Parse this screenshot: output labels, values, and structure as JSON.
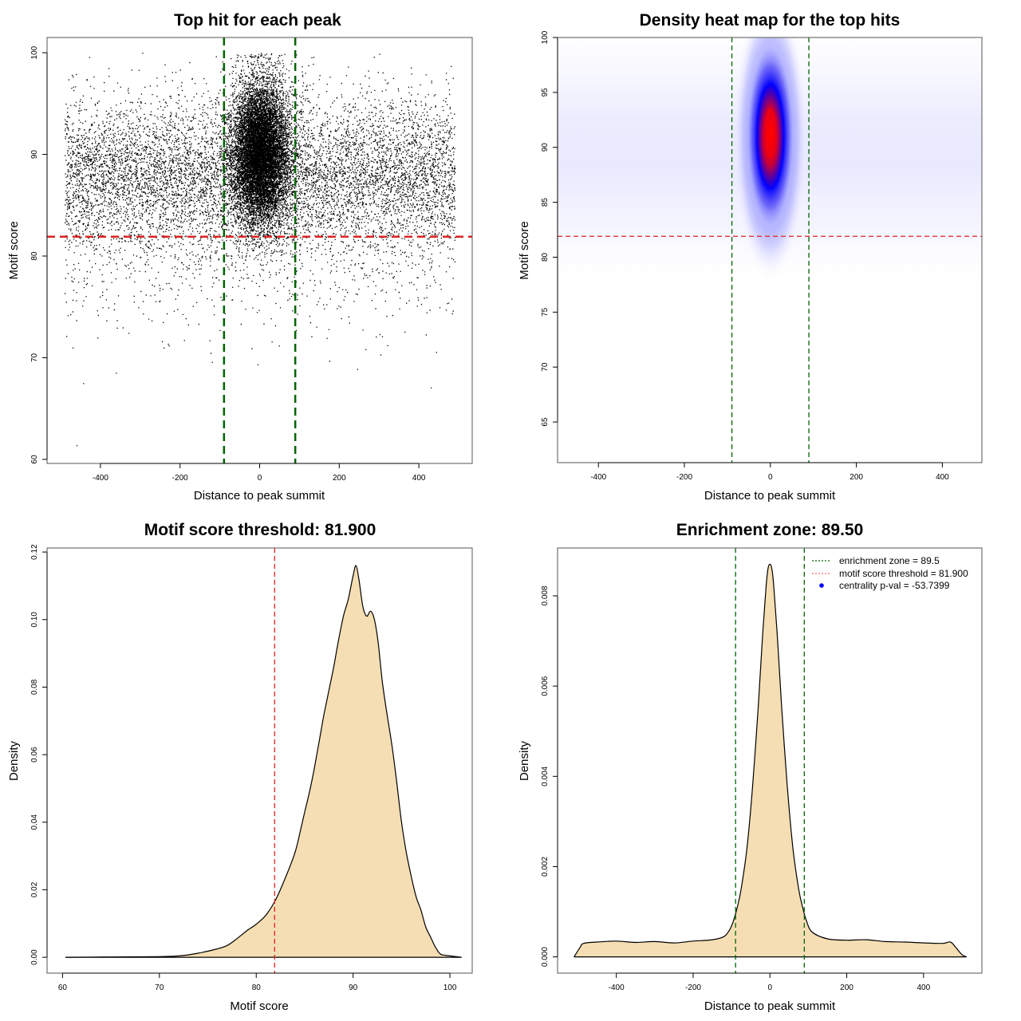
{
  "colors": {
    "enrichment_line": "#006400",
    "threshold_line": "#dd2222",
    "density_fill": "#f5deb3",
    "density_stroke": "#000000",
    "heat_low": "#ffffff",
    "heat_mid": "#0000ff",
    "heat_high": "#ff0000",
    "centrality_point": "#0000ff",
    "points": "#000000"
  },
  "chart_data": [
    {
      "id": "scatter",
      "type": "scatter",
      "title": "Top hit for each peak",
      "xlabel": "Distance to peak summit",
      "ylabel": "Motif score",
      "xlim": [
        -534,
        534
      ],
      "ylim": [
        59.6,
        101.5
      ],
      "xticks": [
        -400,
        -200,
        0,
        200,
        400
      ],
      "xtick_labels": [
        "-400",
        "-200",
        "0",
        "200",
        "400"
      ],
      "yticks": [
        60,
        70,
        80,
        90,
        100
      ],
      "ytick_labels": [
        "60",
        "70",
        "80",
        "90",
        "100"
      ],
      "vlines": [
        -89.5,
        89.5
      ],
      "hline": 81.9,
      "grid": false,
      "points_description": "~20000 points: uniform background over x in [-490,490] with score ~N(88,4); dense central cluster near x=0 (sd ~35), score ~N(90,3.5); scattered outliers down to ~61",
      "point_samples": [
        {
          "x": -460,
          "y": 61.4
        },
        {
          "x": -470,
          "y": 71.0
        },
        {
          "x": -120,
          "y": 69.6
        },
        {
          "x": 245,
          "y": 68.9
        },
        {
          "x": 175,
          "y": 69.7
        },
        {
          "x": 30,
          "y": 71.6
        },
        {
          "x": -295,
          "y": 100
        },
        {
          "x": 135,
          "y": 99.6
        },
        {
          "x": -380,
          "y": 98.5
        },
        {
          "x": 480,
          "y": 98.7
        }
      ]
    },
    {
      "id": "heatmap",
      "type": "heatmap",
      "title": "Density heat map for the top hits",
      "xlabel": "Distance to peak summit",
      "ylabel": "Motif score",
      "xlim": [
        -495,
        492
      ],
      "ylim": [
        61.3,
        100
      ],
      "xticks": [
        -400,
        -200,
        0,
        200,
        400
      ],
      "xtick_labels": [
        "-400",
        "-200",
        "0",
        "200",
        "400"
      ],
      "yticks": [
        65,
        70,
        75,
        80,
        85,
        90,
        95,
        100
      ],
      "ytick_labels": [
        "65",
        "70",
        "75",
        "80",
        "85",
        "90",
        "95",
        "100"
      ],
      "vlines": [
        -89.5,
        89.5
      ],
      "hline": 81.9,
      "hotspot": {
        "x_center": 0,
        "y_center": 91,
        "x_sd": 22,
        "y_sd": 3.3,
        "peak_y_values": [
          92,
          90.5
        ]
      },
      "background": {
        "x_range": [
          -495,
          492
        ],
        "y_center": 89,
        "y_sd": 4.5
      },
      "color_scale": [
        "white",
        "blue",
        "red"
      ]
    },
    {
      "id": "score_density",
      "type": "area",
      "title": "Motif score threshold: 81.900",
      "xlabel": "Motif score",
      "ylabel": "Density",
      "xlim": [
        58.4,
        102.3
      ],
      "ylim": [
        -0.0047,
        0.1212
      ],
      "xticks": [
        60,
        70,
        80,
        90,
        100
      ],
      "xtick_labels": [
        "60",
        "70",
        "80",
        "90",
        "100"
      ],
      "yticks": [
        0,
        0.02,
        0.04,
        0.06,
        0.08,
        0.1,
        0.12
      ],
      "ytick_labels": [
        "0.00",
        "0.02",
        "0.04",
        "0.06",
        "0.08",
        "0.10",
        "0.12"
      ],
      "vline": 81.9,
      "x": [
        60.3,
        65,
        70,
        72,
        74,
        76,
        77,
        78,
        79,
        80,
        81,
        82,
        83,
        84,
        84.6,
        85,
        85.5,
        86,
        86.5,
        87,
        87.5,
        88,
        88.5,
        89,
        89.5,
        90,
        90.3,
        90.6,
        91,
        91.4,
        91.8,
        92.2,
        92.6,
        93,
        93.5,
        94,
        94.5,
        95,
        95.5,
        96,
        96.5,
        97,
        97.5,
        98,
        98.5,
        99,
        99.5,
        100,
        101.2
      ],
      "y": [
        0.0,
        0.0001,
        0.0002,
        0.0004,
        0.0012,
        0.0025,
        0.0035,
        0.0055,
        0.0078,
        0.0098,
        0.0125,
        0.017,
        0.0235,
        0.031,
        0.038,
        0.043,
        0.049,
        0.056,
        0.064,
        0.072,
        0.079,
        0.086,
        0.094,
        0.101,
        0.106,
        0.113,
        0.116,
        0.112,
        0.104,
        0.101,
        0.1025,
        0.1,
        0.093,
        0.082,
        0.072,
        0.063,
        0.052,
        0.04,
        0.031,
        0.024,
        0.018,
        0.014,
        0.009,
        0.006,
        0.003,
        0.001,
        0.0006,
        0.0004,
        0.0
      ]
    },
    {
      "id": "distance_density",
      "type": "area",
      "title": "Enrichment zone: 89.50",
      "xlabel": "Distance to peak summit",
      "ylabel": "Density",
      "xlim": [
        -553,
        552
      ],
      "ylim": [
        -0.00036,
        0.00906
      ],
      "xticks": [
        -400,
        -200,
        0,
        200,
        400
      ],
      "xtick_labels": [
        "-400",
        "-200",
        "0",
        "200",
        "400"
      ],
      "yticks": [
        0,
        0.002,
        0.004,
        0.006,
        0.008
      ],
      "ytick_labels": [
        "0.000",
        "0.002",
        "0.004",
        "0.006",
        "0.008"
      ],
      "vlines": [
        -89.5,
        89.5
      ],
      "x": [
        -510,
        -495,
        -485,
        -450,
        -400,
        -350,
        -300,
        -250,
        -200,
        -150,
        -120,
        -105,
        -95,
        -85,
        -75,
        -60,
        -45,
        -30,
        -20,
        -10,
        -5,
        0,
        5,
        10,
        20,
        30,
        45,
        60,
        75,
        85,
        95,
        110,
        150,
        200,
        250,
        300,
        350,
        400,
        450,
        470,
        485,
        500,
        512
      ],
      "y": [
        0.0,
        0.0002,
        0.0003,
        0.00033,
        0.00035,
        0.00032,
        0.00034,
        0.00031,
        0.00035,
        0.00038,
        0.00045,
        0.0006,
        0.0008,
        0.0011,
        0.0015,
        0.0024,
        0.0038,
        0.0056,
        0.007,
        0.0082,
        0.0086,
        0.0087,
        0.0086,
        0.0082,
        0.007,
        0.0056,
        0.0038,
        0.0024,
        0.0015,
        0.0011,
        0.0008,
        0.00055,
        0.0004,
        0.00037,
        0.00038,
        0.00034,
        0.00033,
        0.00031,
        0.0003,
        0.00033,
        0.0002,
        5e-05,
        0.0
      ],
      "legend": {
        "position": "top-right",
        "entries": [
          {
            "label": "enrichment zone = 89.5",
            "style": "dotted-line",
            "color": "#006400"
          },
          {
            "label": "motif score threshold = 81.900",
            "style": "dotted-line",
            "color": "#ff6666"
          },
          {
            "label": "centrality p-val = -53.7399",
            "style": "point",
            "color": "#0000ff"
          }
        ]
      }
    }
  ]
}
